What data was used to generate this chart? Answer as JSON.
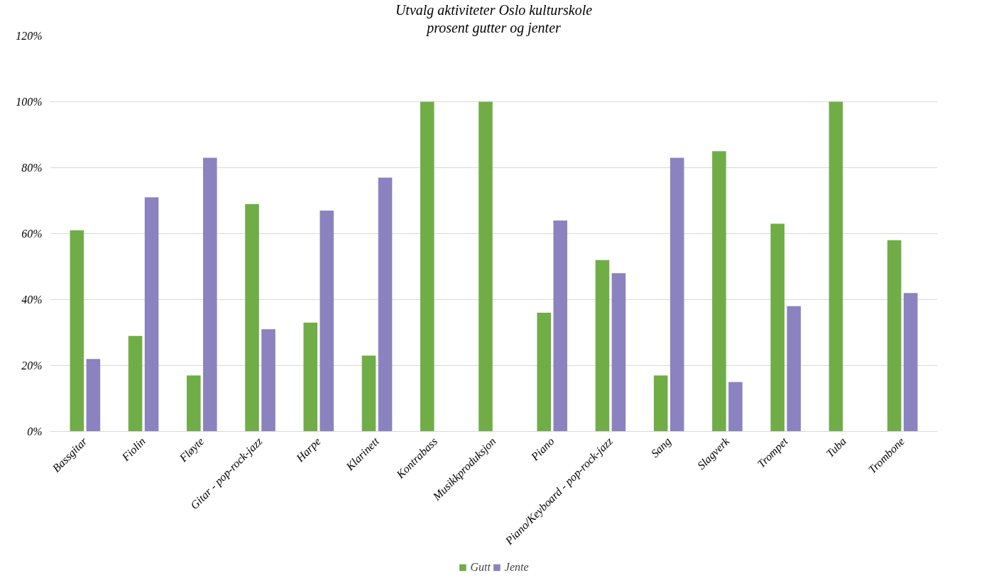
{
  "chart_data": {
    "type": "bar",
    "title": "Utvalg aktiviteter Oslo kulturskole",
    "subtitle": "prosent gutter og jenter",
    "categories": [
      "Bassgitar",
      "Fiolin",
      "Fløyte",
      "Gitar - pop-rock-jazz",
      "Harpe",
      "Klarinett",
      "Kontrabass",
      "Musikkproduksjon",
      "Piano",
      "Piano/Keyboard - pop-rock-jazz",
      "Sang",
      "Slagverk",
      "Trompet",
      "Tuba",
      "Trombone"
    ],
    "series": [
      {
        "name": "Gutt",
        "color": "#70ad47",
        "values": [
          61,
          29,
          17,
          69,
          33,
          23,
          100,
          100,
          36,
          52,
          17,
          85,
          63,
          100,
          58
        ]
      },
      {
        "name": "Jente",
        "color": "#8b83bf",
        "values": [
          22,
          71,
          83,
          31,
          67,
          77,
          0,
          0,
          64,
          48,
          83,
          15,
          38,
          0,
          42
        ]
      }
    ],
    "ylim": [
      0,
      120
    ],
    "yticks": [
      {
        "value": 0,
        "label": "0%"
      },
      {
        "value": 20,
        "label": "20%"
      },
      {
        "value": 40,
        "label": "40%"
      },
      {
        "value": 60,
        "label": "60%"
      },
      {
        "value": 80,
        "label": "80%"
      },
      {
        "value": 100,
        "label": "100%"
      },
      {
        "value": 120,
        "label": "120%"
      }
    ],
    "grid": "y",
    "legend": "bottom"
  }
}
